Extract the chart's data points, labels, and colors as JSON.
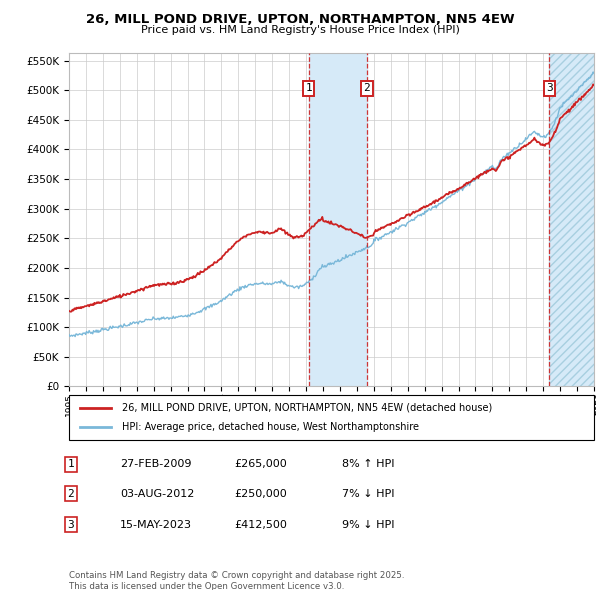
{
  "title": "26, MILL POND DRIVE, UPTON, NORTHAMPTON, NN5 4EW",
  "subtitle": "Price paid vs. HM Land Registry's House Price Index (HPI)",
  "background_color": "#ffffff",
  "plot_bg_color": "#ffffff",
  "grid_color": "#cccccc",
  "sale1": {
    "date": 2009.15,
    "price": 265000,
    "label": "1",
    "pct": "8% ↑ HPI",
    "date_str": "27-FEB-2009"
  },
  "sale2": {
    "date": 2012.59,
    "price": 250000,
    "label": "2",
    "pct": "7% ↓ HPI",
    "date_str": "03-AUG-2012"
  },
  "sale3": {
    "date": 2023.37,
    "price": 412500,
    "label": "3",
    "pct": "9% ↓ HPI",
    "date_str": "15-MAY-2023"
  },
  "hpi_color": "#7ab8d9",
  "price_color": "#cc2222",
  "shade_color": "#d6eaf8",
  "hatch_color": "#a8cfe0",
  "xlim": [
    1995,
    2026
  ],
  "ylim": [
    0,
    562500
  ],
  "yticks": [
    0,
    50000,
    100000,
    150000,
    200000,
    250000,
    300000,
    350000,
    400000,
    450000,
    500000,
    550000
  ],
  "xticks": [
    1995,
    1996,
    1997,
    1998,
    1999,
    2000,
    2001,
    2002,
    2003,
    2004,
    2005,
    2006,
    2007,
    2008,
    2009,
    2010,
    2011,
    2012,
    2013,
    2014,
    2015,
    2016,
    2017,
    2018,
    2019,
    2020,
    2021,
    2022,
    2023,
    2024,
    2025,
    2026
  ],
  "footer": "Contains HM Land Registry data © Crown copyright and database right 2025.\nThis data is licensed under the Open Government Licence v3.0.",
  "legend_line1": "26, MILL POND DRIVE, UPTON, NORTHAMPTON, NN5 4EW (detached house)",
  "legend_line2": "HPI: Average price, detached house, West Northamptonshire"
}
